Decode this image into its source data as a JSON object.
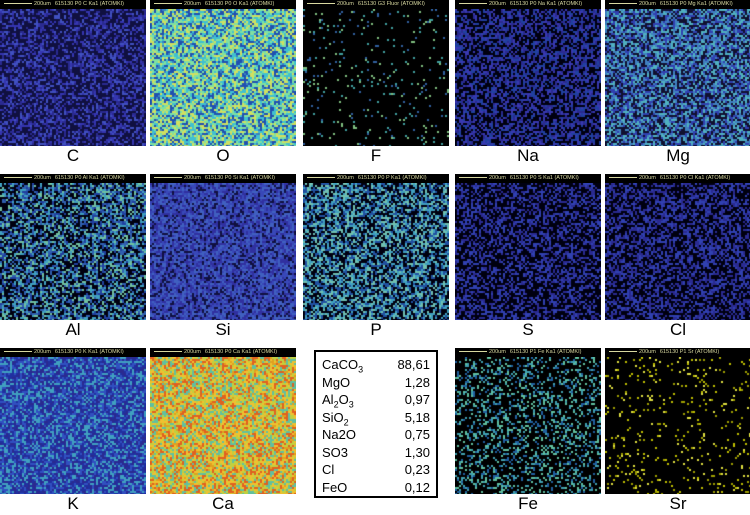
{
  "scale": "200um",
  "panels": [
    {
      "header": "615130 P0  C Ka1 (ATOMKI)",
      "label": "C",
      "bg": "#101040",
      "colors": [
        "#2a2a90",
        "#3535b0",
        "#4050c0"
      ],
      "density": 0.5
    },
    {
      "header": "615130 P0  O Ka1 (ATOMKI)",
      "label": "O",
      "bg": "#3a80c0",
      "colors": [
        "#40c0d0",
        "#80e0a0",
        "#d0e060",
        "#2050b0"
      ],
      "density": 0.95
    },
    {
      "header": "615130 G3  Fluor (ATOMKI)",
      "label": "F",
      "bg": "#000000",
      "colors": [
        "#40a0a0",
        "#80c080",
        "#3060a0"
      ],
      "density": 0.06
    },
    {
      "header": "615130 P0  Na Ka1 (ATOMKI)",
      "label": "Na",
      "bg": "#000010",
      "colors": [
        "#2a2a90",
        "#3838b0",
        "#2040a0"
      ],
      "density": 0.55
    },
    {
      "header": "615130 P0  Mg Ka1 (ATOMKI)",
      "label": "Mg",
      "bg": "#101030",
      "colors": [
        "#3040b0",
        "#4080c0",
        "#50b0c0"
      ],
      "density": 0.65
    },
    {
      "header": "615130 P0  Al Ka1 (ATOMKI)",
      "label": "Al",
      "bg": "#000010",
      "colors": [
        "#2040a0",
        "#40a0c0",
        "#70c0a0",
        "#3060b0"
      ],
      "density": 0.6
    },
    {
      "header": "615130 P0  Si Ka1 (ATOMKI)",
      "label": "Si",
      "bg": "#101040",
      "colors": [
        "#3030a0",
        "#3848b8",
        "#4060c0"
      ],
      "density": 0.8
    },
    {
      "header": "615130 P0  P Ka1 (ATOMKI)",
      "label": "P",
      "bg": "#000010",
      "colors": [
        "#2050a0",
        "#40a0c0",
        "#70c0b0"
      ],
      "density": 0.6
    },
    {
      "header": "615130 P0  S Ka1 (ATOMKI)",
      "label": "S",
      "bg": "#000010",
      "colors": [
        "#2a2a90",
        "#3040b0"
      ],
      "density": 0.45
    },
    {
      "header": "615130 P0  Cl Ka1 (ATOMKI)",
      "label": "Cl",
      "bg": "#000010",
      "colors": [
        "#2a2a90",
        "#3040b0"
      ],
      "density": 0.5
    },
    {
      "header": "615130 P0  K Ka1 (ATOMKI)",
      "label": "K",
      "bg": "#2030a0",
      "colors": [
        "#3050c0",
        "#40a0c0",
        "#2a2a90"
      ],
      "density": 0.75
    },
    {
      "header": "615130 P0  Ca Ka1 (ATOMKI)",
      "label": "Ca",
      "bg": "#e0a020",
      "colors": [
        "#f0c030",
        "#e06020",
        "#c0d040",
        "#60c0a0"
      ],
      "density": 0.9
    },
    {
      "header": "615130 P1  Fe Ka1 (ATOMKI)",
      "label": "Fe",
      "bg": "#000000",
      "colors": [
        "#40a0b0",
        "#60c0a0",
        "#2060a0"
      ],
      "density": 0.3
    },
    {
      "header": "615130 P1  Sr (ATOMKI)",
      "label": "Sr",
      "bg": "#000000",
      "colors": [
        "#c0c000",
        "#e0e040",
        "#a0a000"
      ],
      "density": 0.08
    }
  ],
  "composition": [
    {
      "name": "CaCO",
      "sub": "3",
      "value": "88,61"
    },
    {
      "name": "MgO",
      "sub": "",
      "value": "1,28"
    },
    {
      "name": "Al",
      "sub": "2",
      "name2": "O",
      "sub2": "3",
      "value": "0,97"
    },
    {
      "name": "SiO",
      "sub": "2",
      "value": "5,18"
    },
    {
      "name": "Na2O",
      "sub": "",
      "value": "0,75"
    },
    {
      "name": "SO3",
      "sub": "",
      "value": "1,30"
    },
    {
      "name": "Cl",
      "sub": "",
      "value": "0,23"
    },
    {
      "name": "FeO",
      "sub": "",
      "value": "0,12"
    }
  ]
}
